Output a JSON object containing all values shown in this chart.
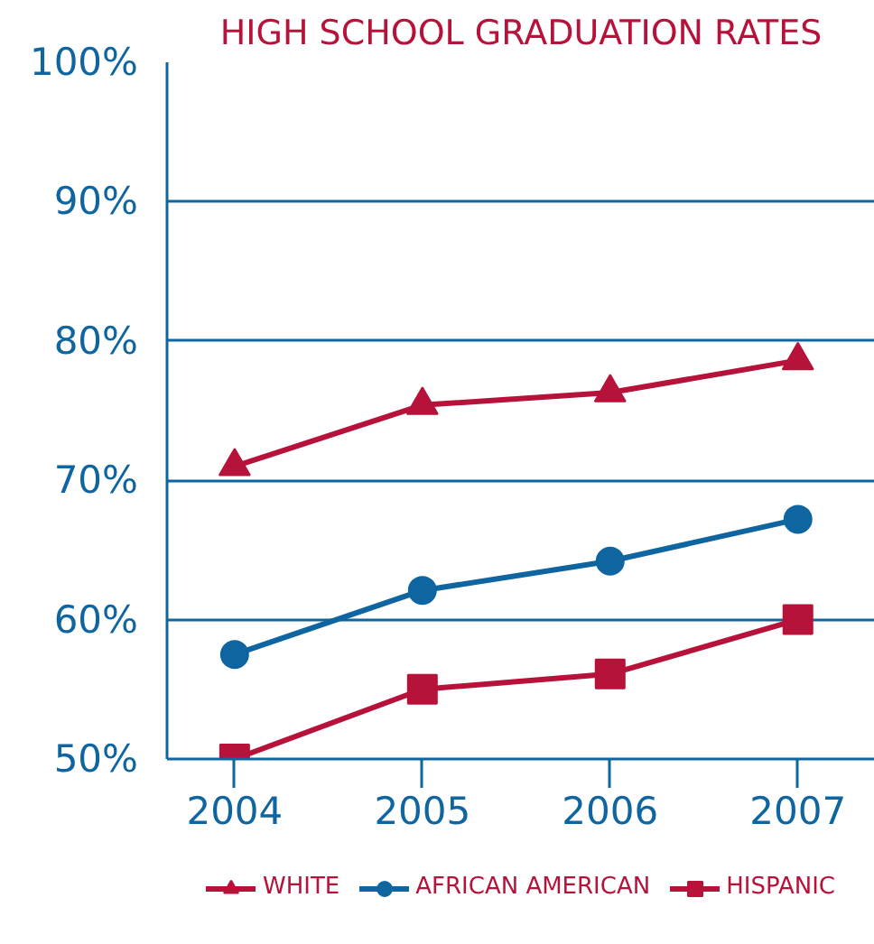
{
  "chart_data": {
    "type": "line",
    "title": "HIGH SCHOOL GRADUATION RATES",
    "categories": [
      "2004",
      "2005",
      "2006",
      "2007"
    ],
    "series": [
      {
        "name": "WHITE",
        "color": "#b7123a",
        "marker": "triangle",
        "values": [
          71.0,
          75.4,
          76.3,
          78.6
        ]
      },
      {
        "name": "AFRICAN AMERICAN",
        "color": "#0f65a0",
        "marker": "circle",
        "values": [
          57.5,
          62.1,
          64.2,
          67.2
        ]
      },
      {
        "name": "HISPANIC",
        "color": "#b7123a",
        "marker": "square",
        "values": [
          50.0,
          55.0,
          56.1,
          60.0
        ]
      }
    ],
    "ylim": [
      50,
      100
    ],
    "yticks": [
      {
        "value": 50,
        "label": "50%"
      },
      {
        "value": 60,
        "label": "60%"
      },
      {
        "value": 70,
        "label": "70%"
      },
      {
        "value": 80,
        "label": "80%"
      },
      {
        "value": 90,
        "label": "90%"
      },
      {
        "value": 100,
        "label": "100%"
      }
    ],
    "grid": "y",
    "legend": "bottom",
    "line_style": "solid"
  }
}
